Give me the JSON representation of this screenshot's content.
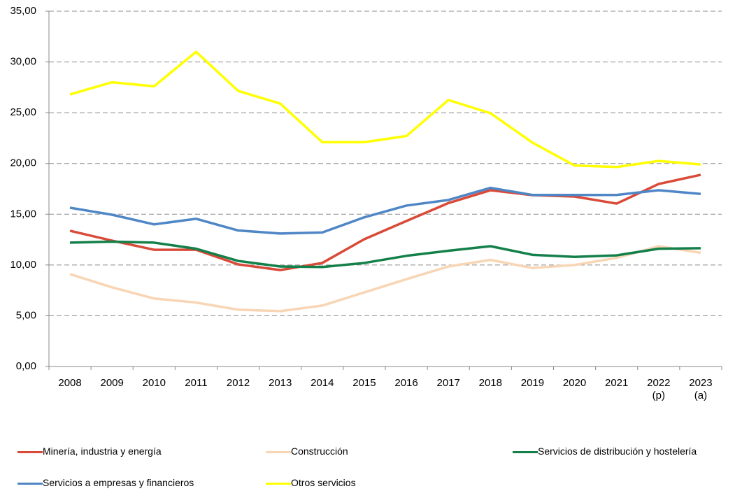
{
  "chart_data": {
    "type": "line",
    "categories": [
      "2008",
      "2009",
      "2010",
      "2011",
      "2012",
      "2013",
      "2014",
      "2015",
      "2016",
      "2017",
      "2018",
      "2019",
      "2020",
      "2021",
      "2022 (p)",
      "2023 (a)"
    ],
    "ylim": [
      0,
      35
    ],
    "yticks": [
      {
        "value": 0,
        "label": "0,00"
      },
      {
        "value": 5,
        "label": "5,00"
      },
      {
        "value": 10,
        "label": "10,00"
      },
      {
        "value": 15,
        "label": "15,00"
      },
      {
        "value": 20,
        "label": "20,00"
      },
      {
        "value": 25,
        "label": "25,00"
      },
      {
        "value": 30,
        "label": "30,00"
      },
      {
        "value": 35,
        "label": "35,00"
      }
    ],
    "grid": true,
    "legend": "bottom",
    "series": [
      {
        "name": "Minería, industria y energía",
        "color": "#d94a38",
        "values": [
          13.37,
          12.4,
          11.5,
          11.5,
          10.06,
          9.5,
          10.2,
          12.54,
          14.33,
          16.1,
          17.36,
          16.88,
          16.74,
          16.05,
          17.98,
          18.88
        ]
      },
      {
        "name": "Construcción",
        "color": "#f8d5b4",
        "values": [
          9.1,
          7.8,
          6.7,
          6.3,
          5.6,
          5.45,
          6.0,
          7.3,
          8.6,
          9.85,
          10.5,
          9.7,
          10.0,
          10.7,
          11.85,
          11.2
        ]
      },
      {
        "name": "Servicios de distribución y hostelería",
        "color": "#13804a",
        "values": [
          12.2,
          12.3,
          12.2,
          11.6,
          10.4,
          9.85,
          9.8,
          10.2,
          10.9,
          11.4,
          11.85,
          11.0,
          10.8,
          10.95,
          11.6,
          11.65
        ]
      },
      {
        "name": "Servicios a empresas y financieros",
        "color": "#4f86c6",
        "values": [
          15.64,
          14.95,
          14.0,
          14.55,
          13.4,
          13.1,
          13.2,
          14.7,
          15.85,
          16.4,
          17.6,
          16.9,
          16.9,
          16.9,
          17.36,
          17.0
        ]
      },
      {
        "name": "Otros servicios",
        "color": "#ffff00",
        "values": [
          26.8,
          28.0,
          27.6,
          31.0,
          27.15,
          25.9,
          22.1,
          22.1,
          22.7,
          26.25,
          24.95,
          22.05,
          19.8,
          19.65,
          20.25,
          19.9
        ]
      }
    ]
  }
}
